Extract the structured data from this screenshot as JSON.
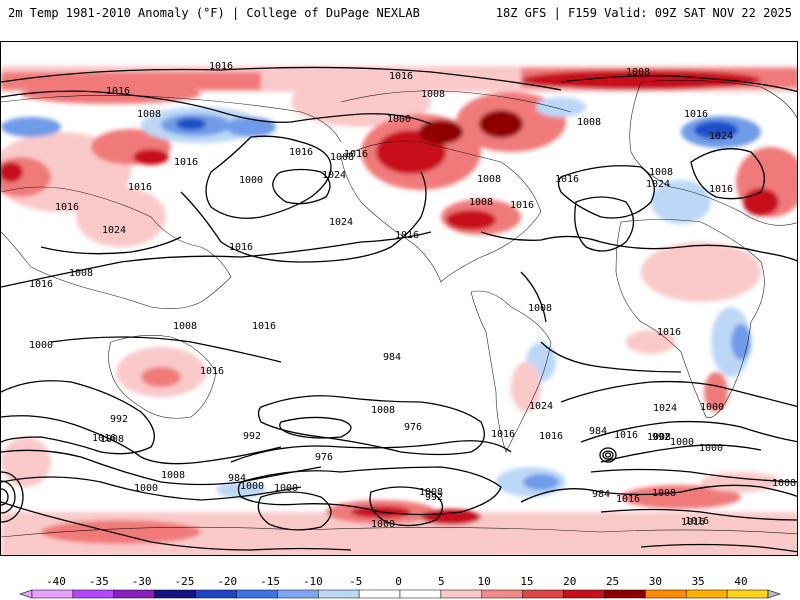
{
  "header": {
    "left_title": "2m Temp 1981-2010 Anomaly (°F) | College of DuPage NEXLAB",
    "right_title": "18Z GFS | F159 Valid: 09Z SAT NOV 22 2025"
  },
  "map": {
    "projection": "equirectangular global",
    "isobar_labels": [
      "1016",
      "1016",
      "1008",
      "1016",
      "1008",
      "1008",
      "1000",
      "1016",
      "1008",
      "1024",
      "1016",
      "1016",
      "1008",
      "1016",
      "1008",
      "1008",
      "1000",
      "1024",
      "1024",
      "1016",
      "1016",
      "1016",
      "1008",
      "1024",
      "1016",
      "1016",
      "1024",
      "1016",
      "1016",
      "1008",
      "1008",
      "1016",
      "1016",
      "1008",
      "1000",
      "984",
      "992",
      "976",
      "1000",
      "1008",
      "984",
      "1000",
      "992",
      "976",
      "992",
      "1000",
      "984",
      "1008",
      "1016",
      "1024",
      "1016",
      "1016",
      "1008",
      "1000",
      "1016",
      "1000",
      "1008",
      "992",
      "1000",
      "984",
      "1000",
      "1008",
      "1016",
      "1008",
      "1016",
      "1016",
      "1008",
      "1016",
      "1024",
      "1016"
    ],
    "colors": {
      "negative_light": "#bcd7f5",
      "negative_mid": "#6f9be8",
      "negative_dark": "#1d4fc7",
      "positive_light": "#f9c9c9",
      "positive_mid": "#f07a7a",
      "positive_dark": "#c8101a",
      "positive_deep": "#8e0000",
      "land_outline": "#000000"
    }
  },
  "colorbar": {
    "ticks": [
      "-40",
      "-35",
      "-30",
      "-25",
      "-20",
      "-15",
      "-10",
      "-5",
      "0",
      "5",
      "10",
      "15",
      "20",
      "25",
      "30",
      "35",
      "40"
    ],
    "colors": [
      "#e6a0ff",
      "#b347ff",
      "#8a1fbf",
      "#141482",
      "#1f45c4",
      "#3d73e8",
      "#7da6f2",
      "#bcd7f5",
      "#ffffff",
      "#ffffff",
      "#f9c9c9",
      "#f28a8a",
      "#e04646",
      "#c8101a",
      "#8e0000",
      "#ff8c00",
      "#ffb000",
      "#ffd21a"
    ]
  }
}
